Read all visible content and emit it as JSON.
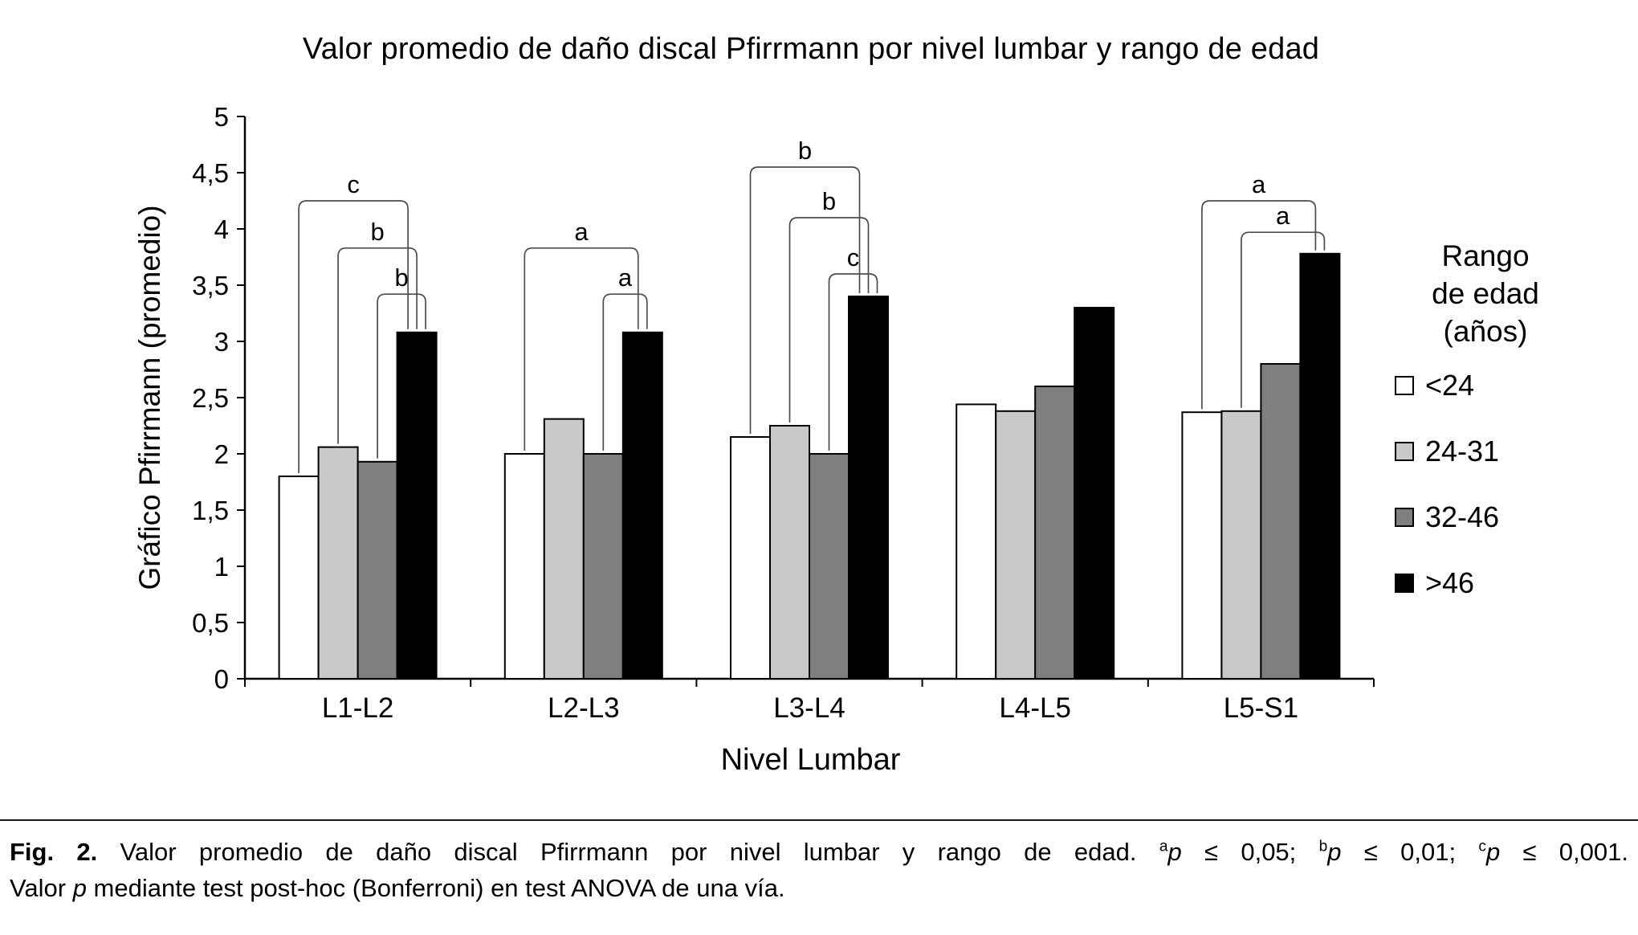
{
  "figure": {
    "background": "#ffffff",
    "divider_color": "#1a1a1a"
  },
  "chart_data": {
    "type": "bar",
    "title": "Valor promedio de daño discal Pfirrmann por nivel lumbar y rango de edad",
    "xlabel": "Nivel Lumbar",
    "ylabel": "Gráfico Pfirrmann (promedio)",
    "ylim": [
      0,
      5
    ],
    "ytick_labels": [
      "0",
      "0,5",
      "1",
      "1,5",
      "2",
      "2,5",
      "3",
      "3,5",
      "4",
      "4,5",
      "5"
    ],
    "categories": [
      "L1-L2",
      "L2-L3",
      "L3-L4",
      "L4-L5",
      "L5-S1"
    ],
    "series": [
      {
        "name": "<24",
        "fill": "#ffffff",
        "values": [
          1.8,
          2.0,
          2.15,
          2.44,
          2.37
        ]
      },
      {
        "name": "24-31",
        "fill": "#c9c9c9",
        "values": [
          2.06,
          2.31,
          2.25,
          2.38,
          2.38
        ]
      },
      {
        "name": "32-46",
        "fill": "#7f7f7f",
        "values": [
          1.93,
          2.0,
          2.0,
          2.6,
          2.8
        ]
      },
      {
        "name": ">46",
        "fill": "#000000",
        "values": [
          3.08,
          3.08,
          3.4,
          3.3,
          3.78
        ]
      }
    ],
    "legend": {
      "title_lines": [
        "Rango",
        "de edad",
        "(años)"
      ],
      "position": "right"
    },
    "grid": false,
    "axis_color": "#000000",
    "bar_stroke": "#000000",
    "bracket_color": "#4d4d4d",
    "significance_brackets": [
      {
        "group": "L1-L2",
        "from": "<24",
        "to": ">46",
        "label": "c",
        "height": 4.25
      },
      {
        "group": "L1-L2",
        "from": "24-31",
        "to": ">46",
        "label": "b",
        "height": 3.83
      },
      {
        "group": "L1-L2",
        "from": "32-46",
        "to": ">46",
        "label": "b",
        "height": 3.42
      },
      {
        "group": "L2-L3",
        "from": "<24",
        "to": ">46",
        "label": "a",
        "height": 3.83
      },
      {
        "group": "L2-L3",
        "from": "32-46",
        "to": ">46",
        "label": "a",
        "height": 3.42
      },
      {
        "group": "L3-L4",
        "from": "<24",
        "to": ">46",
        "label": "b",
        "height": 4.55
      },
      {
        "group": "L3-L4",
        "from": "24-31",
        "to": ">46",
        "label": "b",
        "height": 4.1
      },
      {
        "group": "L3-L4",
        "from": "32-46",
        "to": ">46",
        "label": "c",
        "height": 3.6
      },
      {
        "group": "L5-S1",
        "from": "<24",
        "to": ">46",
        "label": "a",
        "height": 4.25
      },
      {
        "group": "L5-S1",
        "from": "24-31",
        "to": ">46",
        "label": "a",
        "height": 3.97
      }
    ]
  },
  "caption": {
    "fig_label": "Fig. 2.",
    "main": " Valor promedio de daño discal Pfirrmann por nivel lumbar y rango de edad. ",
    "sig": [
      {
        "sup": "a",
        "p": "p",
        "tail": " ≤ 0,05; "
      },
      {
        "sup": "b",
        "p": "p",
        "tail": " ≤ 0,01; "
      },
      {
        "sup": "c",
        "p": "p",
        "tail": " ≤ 0,001."
      }
    ],
    "line2_pre": "Valor ",
    "line2_p": "p",
    "line2_post": " mediante test post-hoc (Bonferroni) en test ANOVA de una vía."
  }
}
